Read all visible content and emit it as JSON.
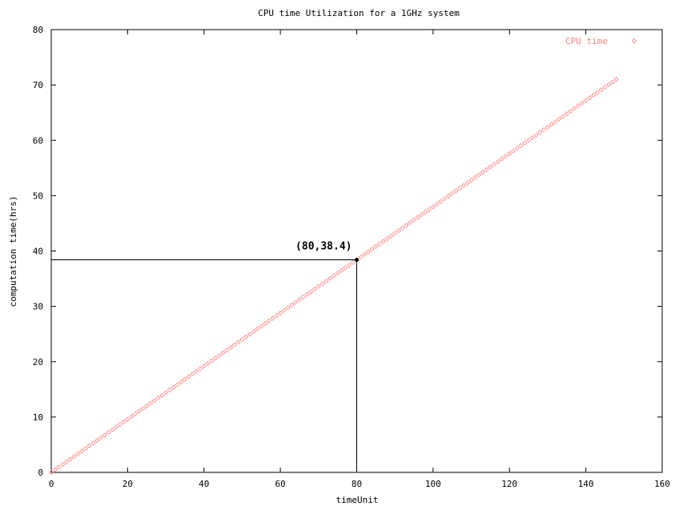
{
  "chart_data": {
    "type": "scatter",
    "title": "CPU time Utilization for a  1GHz system",
    "xlabel": "timeUnit",
    "ylabel": "computation time(hrs)",
    "xlim": [
      0,
      160
    ],
    "ylim": [
      0,
      80
    ],
    "xticks": [
      0,
      20,
      40,
      60,
      80,
      100,
      120,
      140,
      160
    ],
    "yticks": [
      0,
      10,
      20,
      30,
      40,
      50,
      60,
      70,
      80
    ],
    "grid": false,
    "legend_position": "top-right",
    "series": [
      {
        "name": "CPU time",
        "color": "#ff8080",
        "marker": "diamond",
        "x": [
          0,
          148
        ],
        "y": [
          0,
          71.04
        ],
        "step": 1,
        "relation": "y = 0.48 x"
      }
    ],
    "annotation": {
      "label": "(80,38.4)",
      "x": 80,
      "y": 38.4
    }
  }
}
